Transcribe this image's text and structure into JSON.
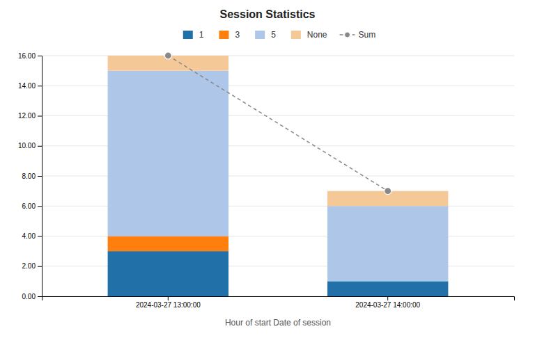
{
  "chart_data": {
    "type": "bar",
    "title": "Session Statistics",
    "stacked": true,
    "grid": true,
    "legend": "top",
    "xlabel": "Hour of start Date of session",
    "categories": [
      "2024-03-27 13:00:00",
      "2024-03-27 14:00:00"
    ],
    "series": [
      {
        "name": "1",
        "color": "#2171a8",
        "values": [
          3,
          1
        ]
      },
      {
        "name": "3",
        "color": "#ff7f0e",
        "values": [
          1,
          0
        ]
      },
      {
        "name": "5",
        "color": "#aec6e8",
        "values": [
          11,
          5
        ]
      },
      {
        "name": "None",
        "color": "#f5c898",
        "values": [
          1,
          1
        ]
      },
      {
        "name": "Sum",
        "type": "line",
        "color": "#888888",
        "line_style": "dashed",
        "marker": "circle",
        "values": [
          16,
          7
        ]
      }
    ],
    "ylim": [
      0,
      16
    ],
    "yticks": [
      {
        "value": 0,
        "label": "0.00"
      },
      {
        "value": 2,
        "label": "2.00"
      },
      {
        "value": 4,
        "label": "4.00"
      },
      {
        "value": 6,
        "label": "6.00"
      },
      {
        "value": 8,
        "label": "8.00"
      },
      {
        "value": 10,
        "label": "10.00"
      },
      {
        "value": 12,
        "label": "12.00"
      },
      {
        "value": 14,
        "label": "14.00"
      },
      {
        "value": 16,
        "label": "16.00"
      }
    ]
  }
}
